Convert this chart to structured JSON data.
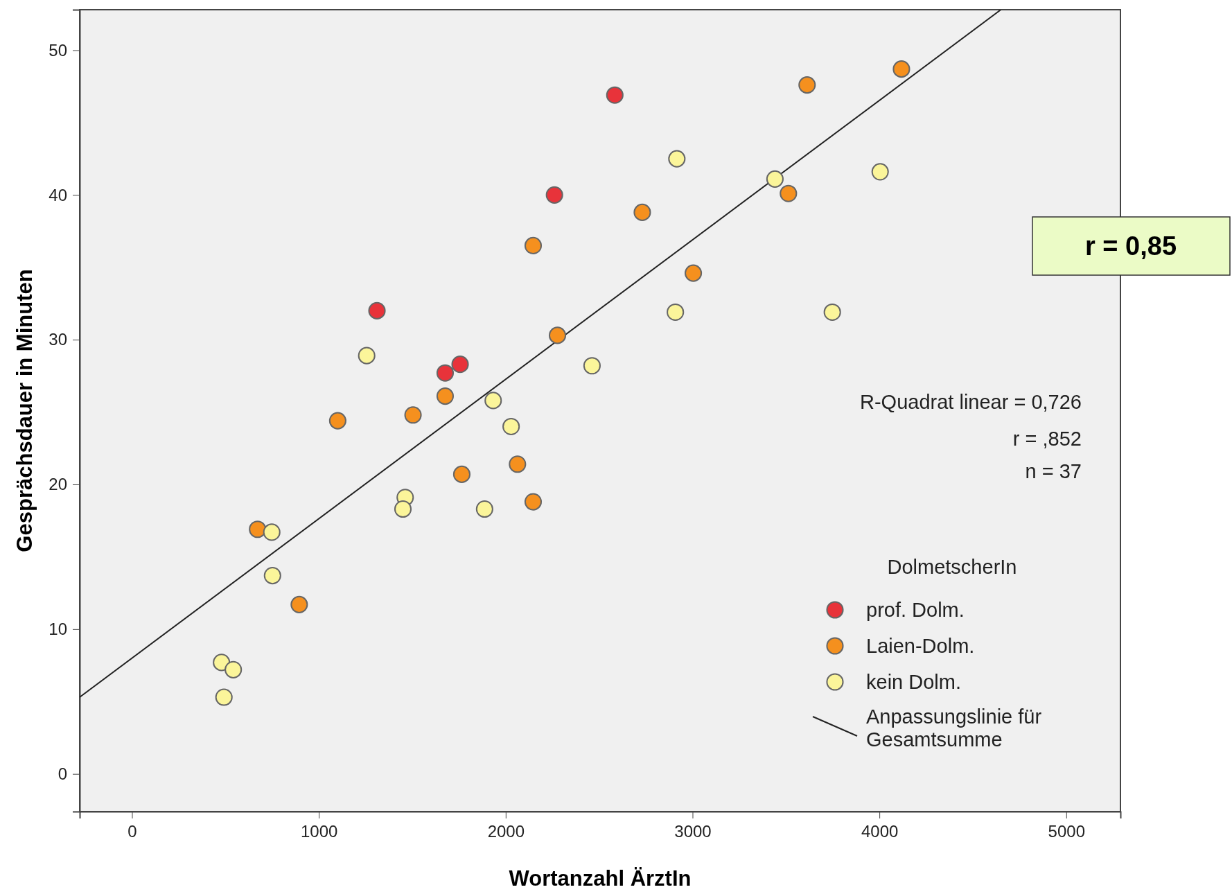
{
  "chart_data": {
    "type": "scatter",
    "xlabel": "Wortanzahl ÄrztIn",
    "ylabel": "Gesprächsdauer in Minuten",
    "legend_title": "DolmetscherIn",
    "legend": "right",
    "marker": "circle",
    "grid": false,
    "xlim": [
      -280,
      5290
    ],
    "ylim": [
      -2.6,
      52.8
    ],
    "xticks": [
      0,
      1000,
      2000,
      3000,
      4000,
      5000
    ],
    "yticks": [
      0,
      10,
      20,
      30,
      40,
      50
    ],
    "series": [
      {
        "name": "prof. Dolm.",
        "color": "#e8333a",
        "x": [
          2584,
          2261,
          1311,
          1756,
          1676
        ],
        "values": [
          46.9,
          40.0,
          32.0,
          28.3,
          27.7
        ]
      },
      {
        "name": "Laien-Dolm.",
        "color": "#f5901e",
        "x": [
          4118,
          3613,
          2731,
          3513,
          2147,
          3004,
          2277,
          1676,
          1504,
          1101,
          1765,
          2063,
          2147,
          672,
          895
        ],
        "values": [
          48.7,
          47.6,
          38.8,
          40.1,
          36.5,
          34.6,
          30.3,
          26.1,
          24.8,
          24.4,
          20.7,
          21.4,
          18.8,
          16.9,
          11.7
        ]
      },
      {
        "name": "kein Dolm.",
        "color": "#fbf59a",
        "x": [
          2916,
          3441,
          4004,
          2908,
          3748,
          1256,
          2462,
          1933,
          2029,
          1462,
          1450,
          1887,
          748,
          752,
          479,
          542,
          492
        ],
        "values": [
          42.5,
          41.1,
          41.6,
          31.9,
          31.9,
          28.9,
          28.2,
          25.8,
          24.0,
          19.1,
          18.3,
          18.3,
          16.7,
          13.7,
          7.7,
          7.2,
          5.3
        ]
      },
      {
        "name": "Anpassungslinie für Gesamtsumme",
        "color": "#222222",
        "type": "line",
        "marker": "none",
        "x": [
          -280,
          4650
        ],
        "values": [
          5.3,
          52.8
        ]
      }
    ],
    "annotations": [
      "R-Quadrat linear = 0,726",
      "r = ,852",
      "n = 37",
      "r =  0,85"
    ]
  }
}
